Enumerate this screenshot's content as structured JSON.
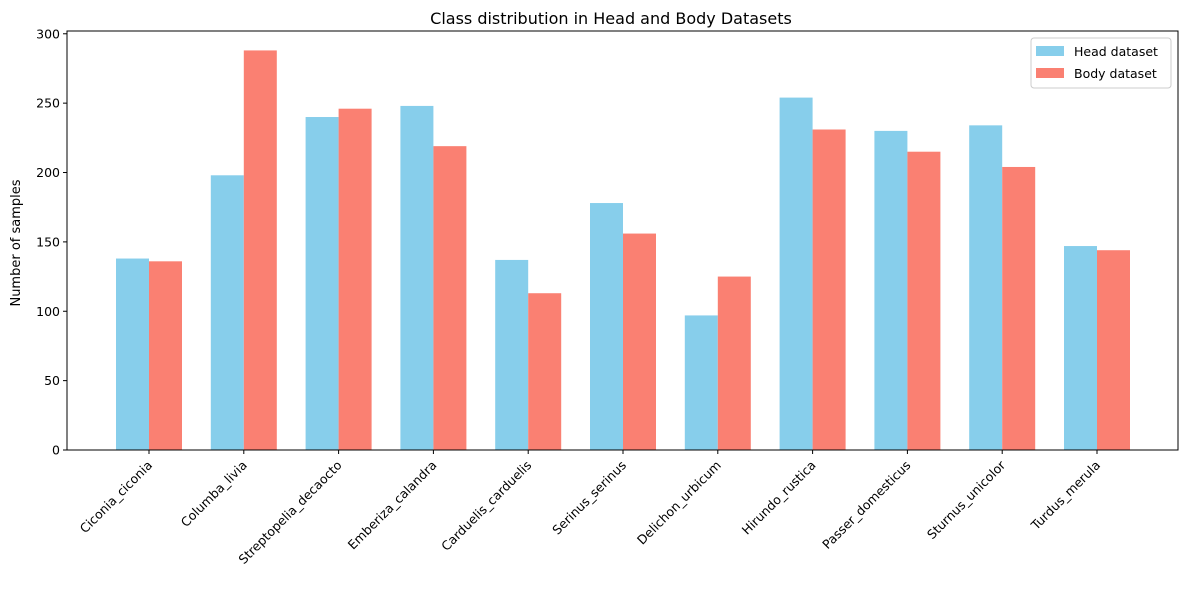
{
  "chart_data": {
    "type": "bar",
    "title": "Class distribution in Head and Body Datasets",
    "xlabel": "",
    "ylabel": "Number of samples",
    "categories": [
      "Ciconia_ciconia",
      "Columba_livia",
      "Streptopelia_decaocto",
      "Emberiza_calandra",
      "Carduelis_carduelis",
      "Serinus_serinus",
      "Delichon_urbicum",
      "Hirundo_rustica",
      "Passer_domesticus",
      "Sturnus_unicolor",
      "Turdus_merula"
    ],
    "series": [
      {
        "name": "Head dataset",
        "color": "#87ceeb",
        "values": [
          138,
          198,
          240,
          248,
          137,
          178,
          97,
          254,
          230,
          234,
          147
        ]
      },
      {
        "name": "Body dataset",
        "color": "#fa8072",
        "values": [
          136,
          288,
          246,
          219,
          113,
          156,
          125,
          231,
          215,
          204,
          144
        ]
      }
    ],
    "ylim": [
      0,
      302
    ],
    "yticks": [
      0,
      50,
      100,
      150,
      200,
      250,
      300
    ],
    "grid": false,
    "legend_position": "top-right"
  }
}
